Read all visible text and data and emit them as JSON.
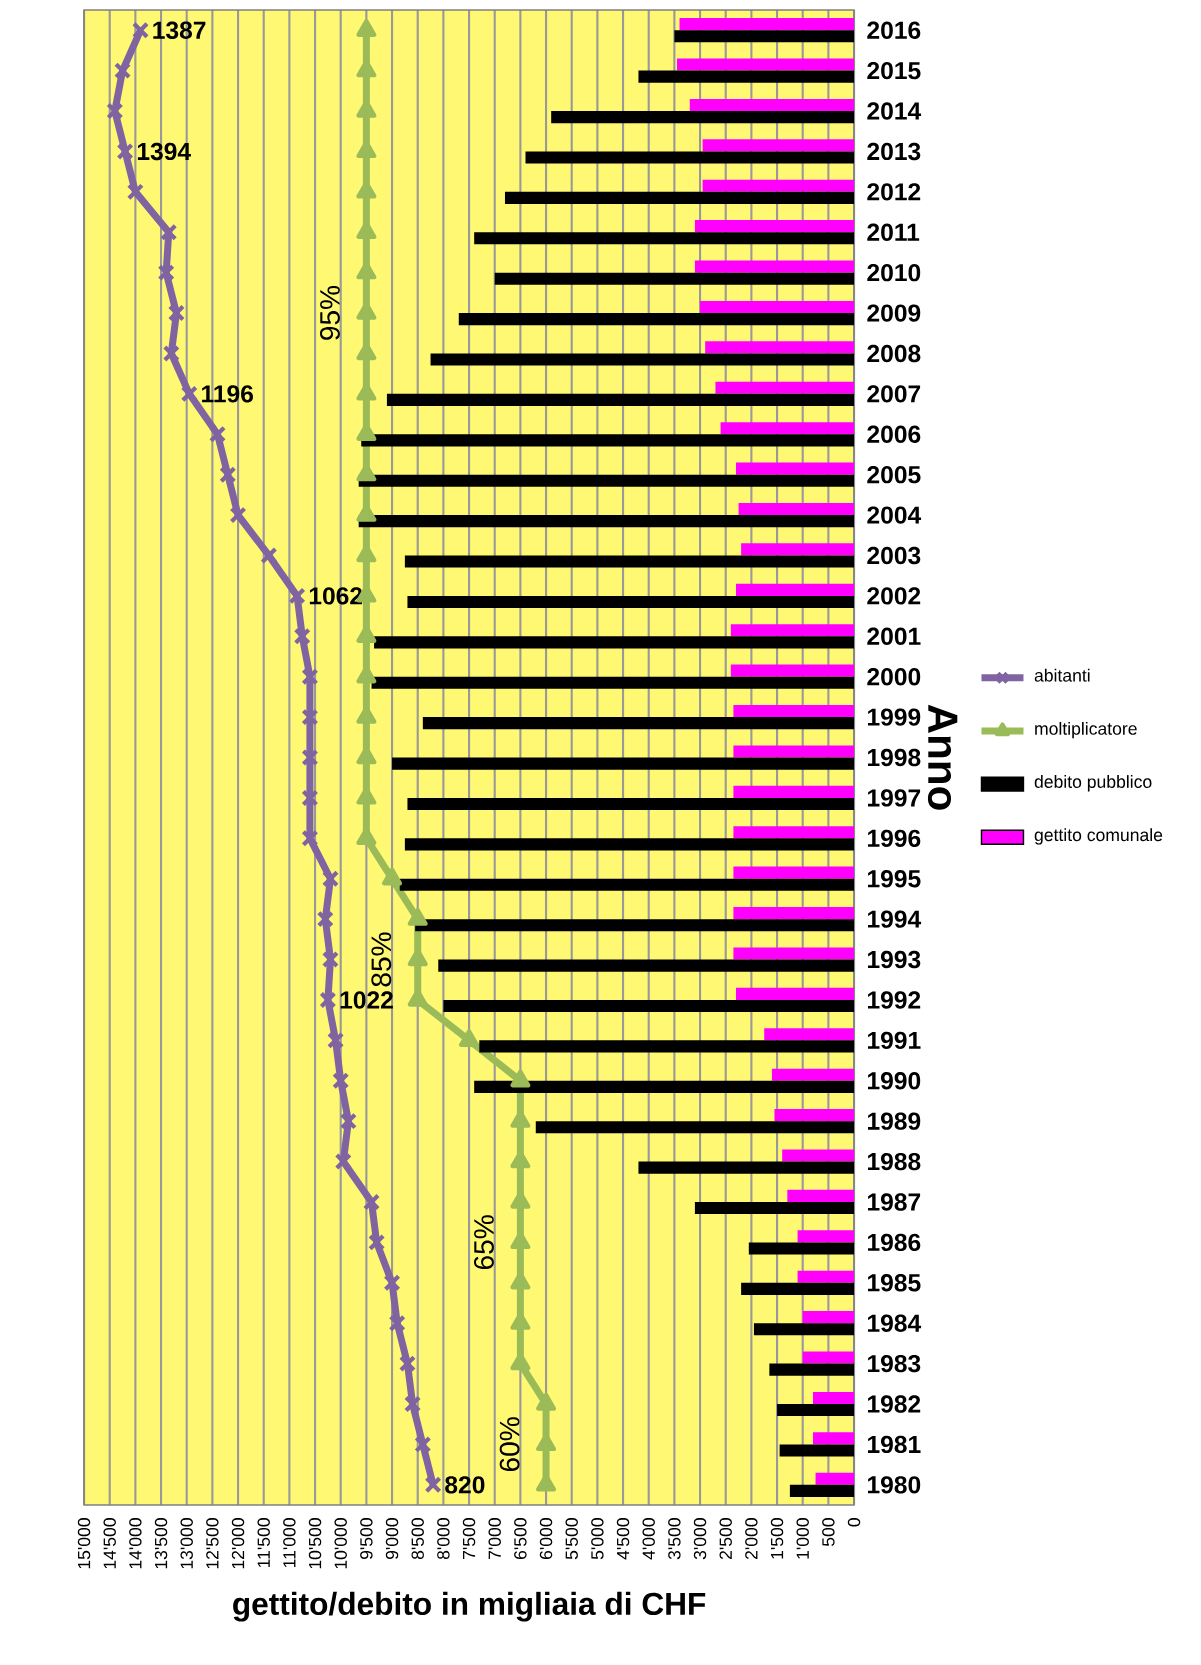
{
  "chart_data": {
    "type": "bar",
    "orientation": "horizontal",
    "xlabel": "gettito/debito in migliaia di CHF",
    "ylabel": "Anno",
    "categories": [
      "2016",
      "2015",
      "2014",
      "2013",
      "2012",
      "2011",
      "2010",
      "2009",
      "2008",
      "2007",
      "2006",
      "2005",
      "2004",
      "2003",
      "2002",
      "2001",
      "2000",
      "1999",
      "1998",
      "1997",
      "1996",
      "1995",
      "1994",
      "1993",
      "1992",
      "1991",
      "1990",
      "1989",
      "1988",
      "1987",
      "1986",
      "1985",
      "1984",
      "1983",
      "1982",
      "1981",
      "1980"
    ],
    "series": [
      {
        "name": "gettito comunale",
        "color": "#ff00ff",
        "values": [
          3400,
          3450,
          3200,
          2950,
          2950,
          3100,
          3100,
          3000,
          2900,
          2700,
          2600,
          2300,
          2250,
          2200,
          2300,
          2400,
          2400,
          2350,
          2350,
          2350,
          2350,
          2350,
          2350,
          2350,
          2300,
          1750,
          1600,
          1550,
          1400,
          1300,
          1100,
          1100,
          1000,
          1000,
          800,
          800,
          750
        ]
      },
      {
        "name": "debito pubblico",
        "color": "#000000",
        "values": [
          3500,
          4200,
          5900,
          6400,
          6800,
          7400,
          7000,
          7700,
          8250,
          9100,
          9600,
          9650,
          9650,
          8750,
          8700,
          9350,
          9400,
          8400,
          9000,
          8700,
          8750,
          8850,
          8550,
          8100,
          8000,
          7300,
          7400,
          6200,
          4200,
          3100,
          2050,
          2200,
          1950,
          1650,
          1500,
          1450,
          1250
        ]
      },
      {
        "name": "moltiplicatore",
        "type": "line",
        "marker": "triangle",
        "color": "#9bbb59",
        "values": [
          9500,
          9500,
          9500,
          9500,
          9500,
          9500,
          9500,
          9500,
          9500,
          9500,
          9500,
          9500,
          9500,
          9500,
          9500,
          9500,
          9500,
          9500,
          9500,
          9500,
          9500,
          9000,
          8500,
          8500,
          8500,
          7500,
          6500,
          6500,
          6500,
          6500,
          6500,
          6500,
          6500,
          6500,
          6000,
          6000,
          6000
        ]
      },
      {
        "name": "abitanti",
        "type": "line",
        "marker": "cross",
        "color": "#8064a2",
        "values": [
          13900,
          14250,
          14400,
          14200,
          14000,
          13350,
          13400,
          13200,
          13300,
          12950,
          12400,
          12200,
          12000,
          11400,
          10850,
          10750,
          10600,
          10600,
          10600,
          10600,
          10600,
          10200,
          10300,
          10200,
          10250,
          10100,
          10000,
          9850,
          9950,
          9400,
          9300,
          9000,
          8900,
          8700,
          8600,
          8400,
          8200
        ]
      }
    ],
    "annotations": [
      {
        "text": "60%",
        "x": 6000,
        "y": "1981"
      },
      {
        "text": "65%",
        "x": 6500,
        "y": "1986"
      },
      {
        "text": "85%",
        "x": 8500,
        "y": "1993"
      },
      {
        "text": "95%",
        "x": 9500,
        "y": "2009"
      },
      {
        "text": "820",
        "x": 8200,
        "y": "1980"
      },
      {
        "text": "1022",
        "x": 10250,
        "y": "1992"
      },
      {
        "text": "1062",
        "x": 10850,
        "y": "2002"
      },
      {
        "text": "1196",
        "x": 12950,
        "y": "2007"
      },
      {
        "text": "1394",
        "x": 14200,
        "y": "2013"
      },
      {
        "text": "1387",
        "x": 13900,
        "y": "2016"
      }
    ],
    "xlim": [
      15000,
      0
    ],
    "xticks": [
      {
        "value": 15000,
        "label": "15'000"
      },
      {
        "value": 14500,
        "label": "14'500"
      },
      {
        "value": 14000,
        "label": "14'000"
      },
      {
        "value": 13500,
        "label": "13'500"
      },
      {
        "value": 13000,
        "label": "13'000"
      },
      {
        "value": 12500,
        "label": "12'500"
      },
      {
        "value": 12000,
        "label": "12'000"
      },
      {
        "value": 11500,
        "label": "11'500"
      },
      {
        "value": 11000,
        "label": "11'000"
      },
      {
        "value": 10500,
        "label": "10'500"
      },
      {
        "value": 10000,
        "label": "10'000"
      },
      {
        "value": 9500,
        "label": "9'500"
      },
      {
        "value": 9000,
        "label": "9'000"
      },
      {
        "value": 8500,
        "label": "8'500"
      },
      {
        "value": 8000,
        "label": "8'000"
      },
      {
        "value": 7500,
        "label": "7'500"
      },
      {
        "value": 7000,
        "label": "7'000"
      },
      {
        "value": 6500,
        "label": "6'500"
      },
      {
        "value": 6000,
        "label": "6'000"
      },
      {
        "value": 5500,
        "label": "5'500"
      },
      {
        "value": 5000,
        "label": "5'000"
      },
      {
        "value": 4500,
        "label": "4'500"
      },
      {
        "value": 4000,
        "label": "4'000"
      },
      {
        "value": 3500,
        "label": "3'500"
      },
      {
        "value": 3000,
        "label": "3'000"
      },
      {
        "value": 2500,
        "label": "2'500"
      },
      {
        "value": 2000,
        "label": "2'000"
      },
      {
        "value": 1500,
        "label": "1'500"
      },
      {
        "value": 1000,
        "label": "1'000"
      },
      500,
      0
    ],
    "grid": "x",
    "legend": "right"
  }
}
